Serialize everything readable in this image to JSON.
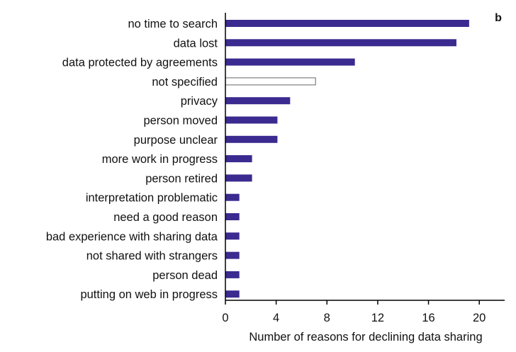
{
  "panel_label": "b",
  "chart_data": {
    "type": "bar",
    "orientation": "horizontal",
    "categories": [
      "no time to search",
      "data lost",
      "data protected by agreements",
      "not specified",
      "privacy",
      "person moved",
      "purpose unclear",
      "more work in progress",
      "person retired",
      "interpretation problematic",
      "need a good reason",
      "bad experience with sharing data",
      "not shared with strangers",
      "person dead",
      "putting on web in progress"
    ],
    "values": [
      19.2,
      18.2,
      10.2,
      7.1,
      5.1,
      4.1,
      4.1,
      2.1,
      2.1,
      1.1,
      1.1,
      1.1,
      1.1,
      1.1,
      1.1
    ],
    "bar_styles": [
      "filled",
      "filled",
      "filled",
      "outline",
      "filled",
      "filled",
      "filled",
      "filled",
      "filled",
      "filled",
      "filled",
      "filled",
      "filled",
      "filled",
      "filled"
    ],
    "colors": {
      "fill": "#3b2a8f",
      "outline": "#666666"
    },
    "xlabel": "Number of reasons for declining data sharing",
    "ylabel": "",
    "xlim": [
      0,
      22
    ],
    "xticks": [
      0,
      4,
      8,
      12,
      16,
      20
    ],
    "grid": false,
    "legend": "none"
  }
}
